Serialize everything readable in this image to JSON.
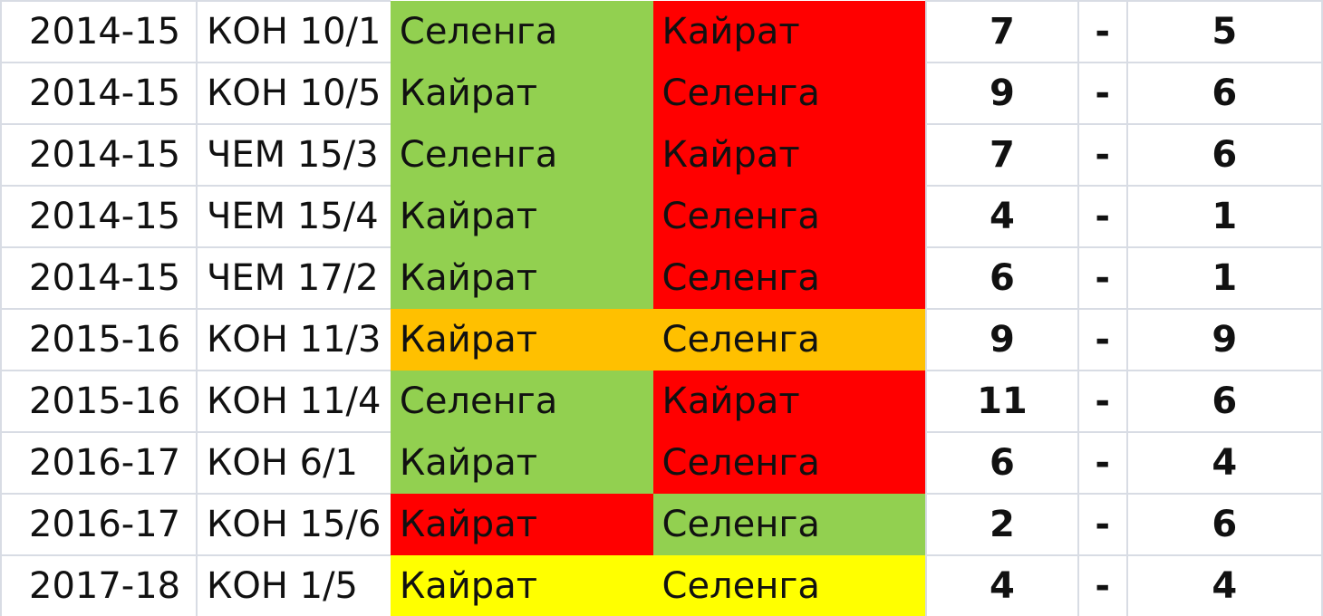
{
  "colors": {
    "win": "#92D050",
    "loss": "#FF0000",
    "draw_orange": "#FFC000",
    "draw_yellow": "#FFFF00"
  },
  "rows": [
    {
      "season": "2014-15",
      "stage": "КОН 10/1",
      "team1": "Селенга",
      "team2": "Кайрат",
      "c1": "win",
      "c2": "loss",
      "s1": "7",
      "dash": "-",
      "s2": "5"
    },
    {
      "season": "2014-15",
      "stage": "КОН 10/5",
      "team1": "Кайрат",
      "team2": "Селенга",
      "c1": "win",
      "c2": "loss",
      "s1": "9",
      "dash": "-",
      "s2": "6"
    },
    {
      "season": "2014-15",
      "stage": "ЧЕМ 15/3",
      "team1": "Селенга",
      "team2": "Кайрат",
      "c1": "win",
      "c2": "loss",
      "s1": "7",
      "dash": "-",
      "s2": "6"
    },
    {
      "season": "2014-15",
      "stage": "ЧЕМ 15/4",
      "team1": "Кайрат",
      "team2": "Селенга",
      "c1": "win",
      "c2": "loss",
      "s1": "4",
      "dash": "-",
      "s2": "1"
    },
    {
      "season": "2014-15",
      "stage": "ЧЕМ 17/2",
      "team1": "Кайрат",
      "team2": "Селенга",
      "c1": "win",
      "c2": "loss",
      "s1": "6",
      "dash": "-",
      "s2": "1"
    },
    {
      "season": "2015-16",
      "stage": "КОН 11/3",
      "team1": "Кайрат",
      "team2": "Селенга",
      "c1": "draw_orange",
      "c2": "draw_orange",
      "s1": "9",
      "dash": "-",
      "s2": "9"
    },
    {
      "season": "2015-16",
      "stage": "КОН 11/4",
      "team1": "Селенга",
      "team2": "Кайрат",
      "c1": "win",
      "c2": "loss",
      "s1": "11",
      "dash": "-",
      "s2": "6"
    },
    {
      "season": "2016-17",
      "stage": "КОН 6/1",
      "team1": "Кайрат",
      "team2": "Селенга",
      "c1": "win",
      "c2": "loss",
      "s1": "6",
      "dash": "-",
      "s2": "4"
    },
    {
      "season": "2016-17",
      "stage": "КОН 15/6",
      "team1": "Кайрат",
      "team2": "Селенга",
      "c1": "loss",
      "c2": "win",
      "s1": "2",
      "dash": "-",
      "s2": "6"
    },
    {
      "season": "2017-18",
      "stage": "КОН 1/5",
      "team1": "Кайрат",
      "team2": "Селенга",
      "c1": "draw_yellow",
      "c2": "draw_yellow",
      "s1": "4",
      "dash": "-",
      "s2": "4"
    }
  ]
}
